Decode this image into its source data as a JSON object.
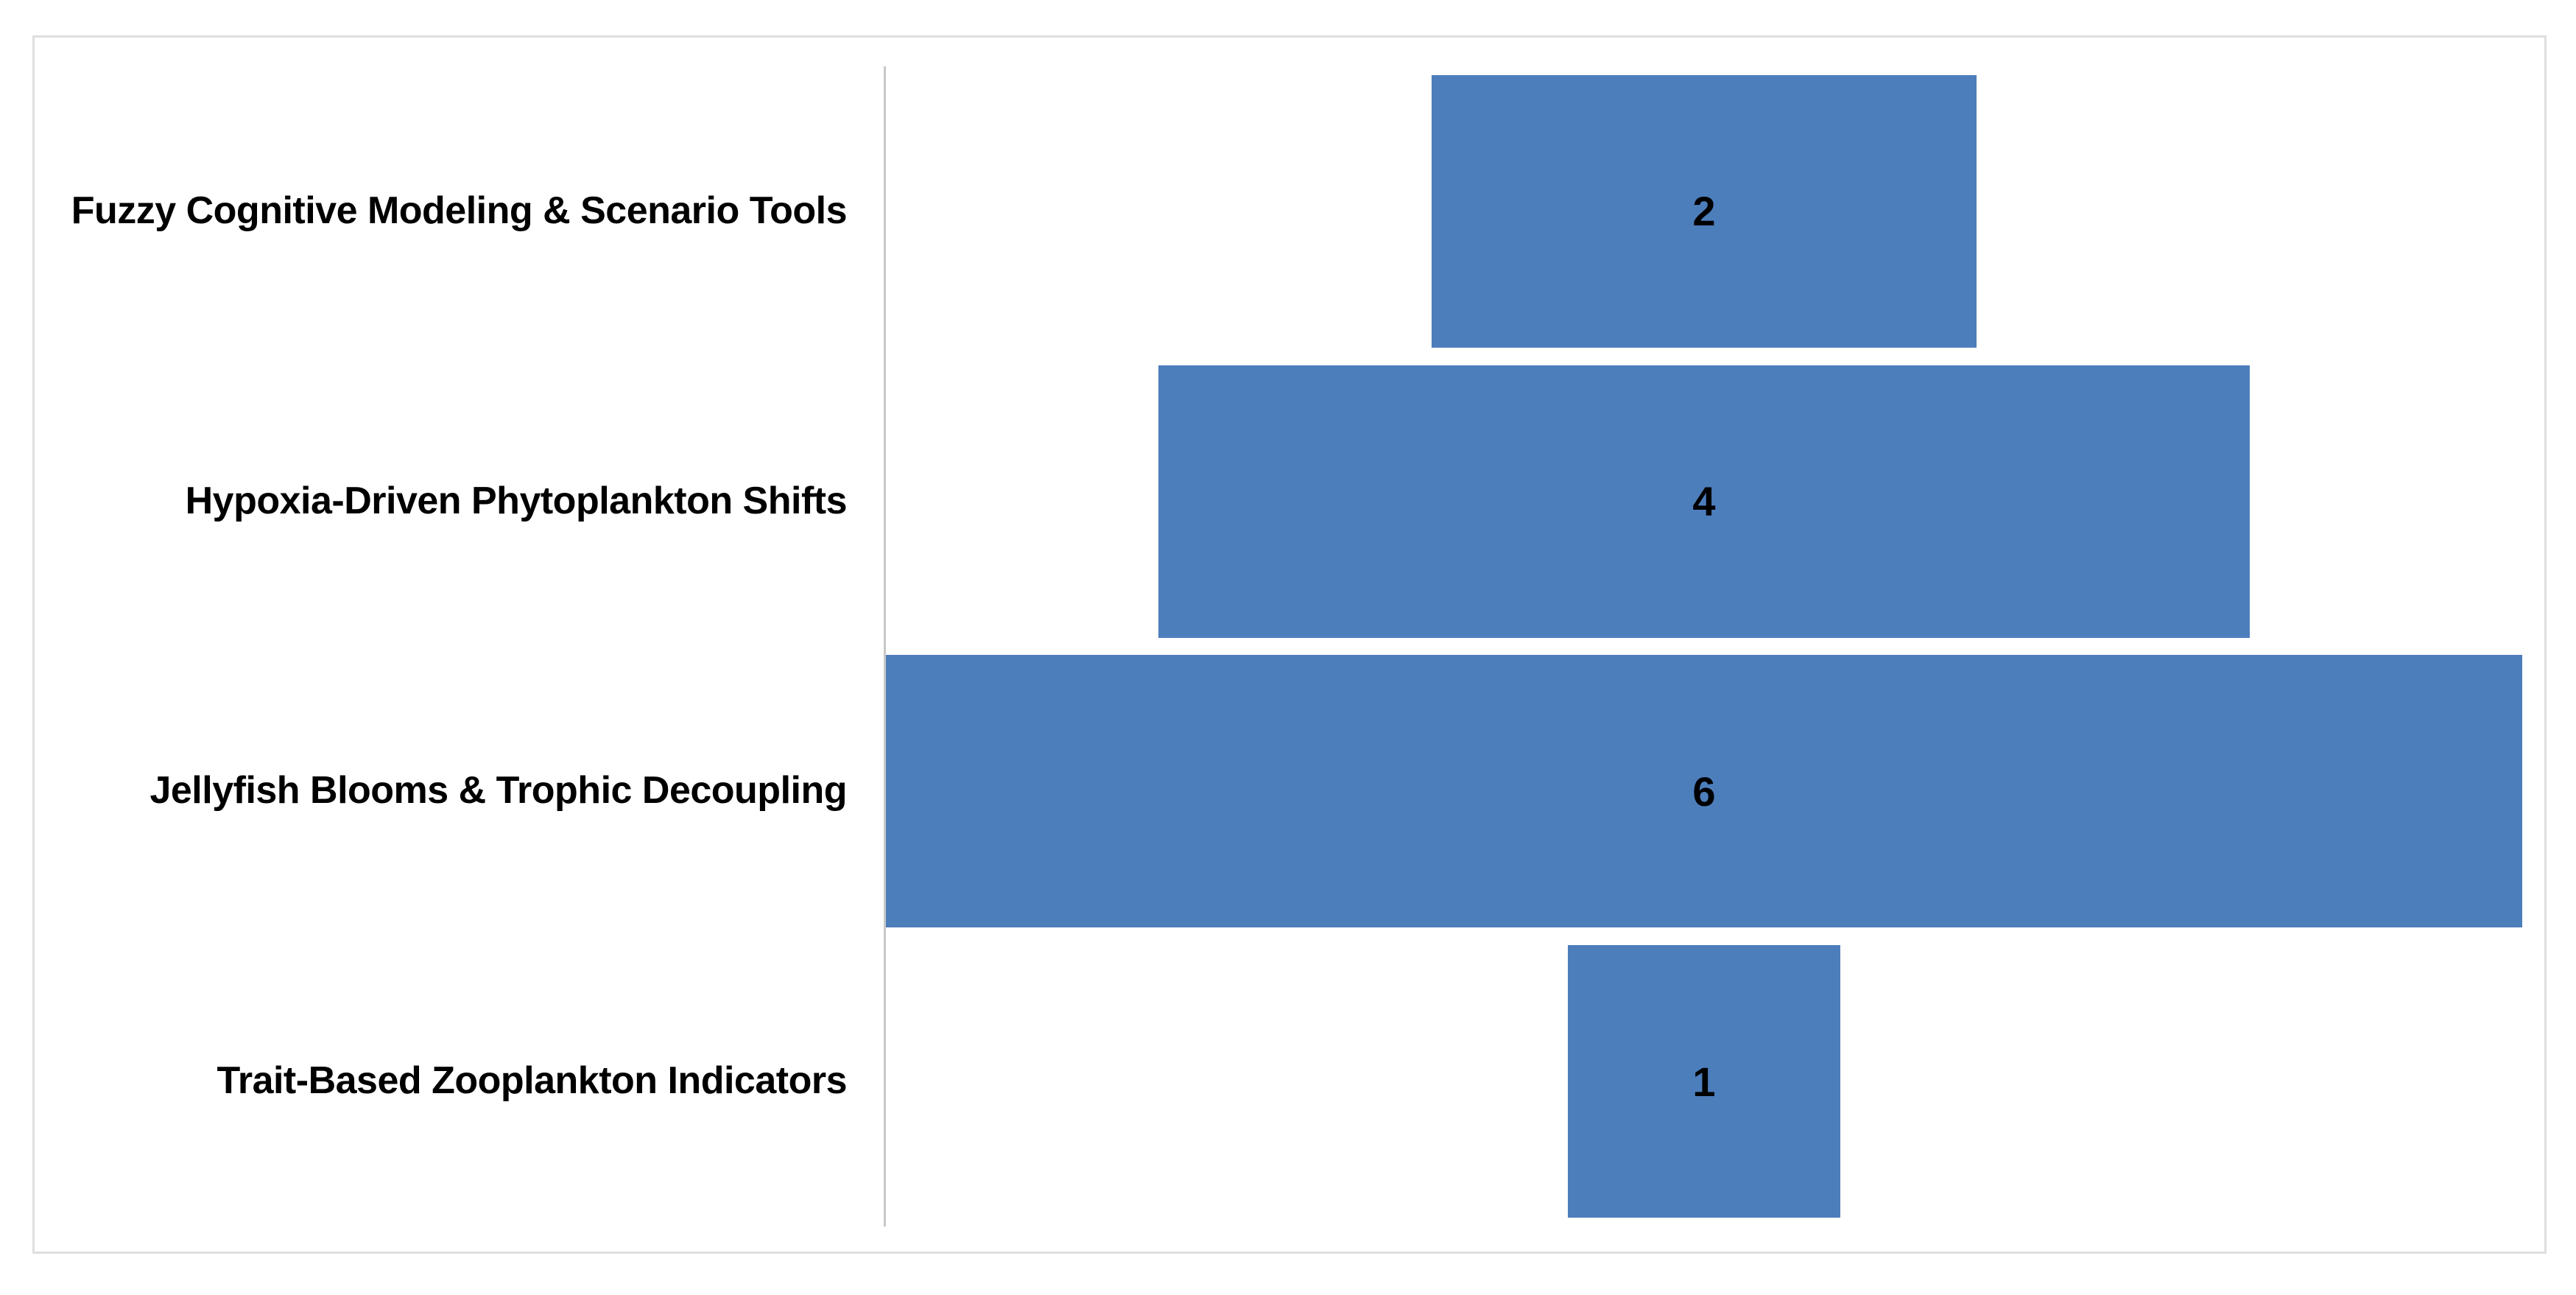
{
  "chart_data": {
    "type": "bar",
    "orientation": "horizontal",
    "layout": "centered-funnel",
    "title": "",
    "categories": [
      "Fuzzy Cognitive Modeling & Scenario Tools",
      "Hypoxia-Driven Phytoplankton Shifts",
      "Jellyfish Blooms & Trophic Decoupling",
      "Trait-Based Zooplankton Indicators"
    ],
    "values": [
      2,
      4,
      6,
      1
    ],
    "data_labels_shown": true,
    "xlim": [
      0,
      6
    ],
    "xlabel": "",
    "ylabel": "",
    "legend": "none",
    "gridlines": "off",
    "colors": {
      "bar": "#4d7ebc",
      "category_label": "#000000",
      "value_label": "#000000",
      "axis_line": "#c8c8c8",
      "frame_border": "#dedede",
      "background": "#ffffff"
    }
  }
}
